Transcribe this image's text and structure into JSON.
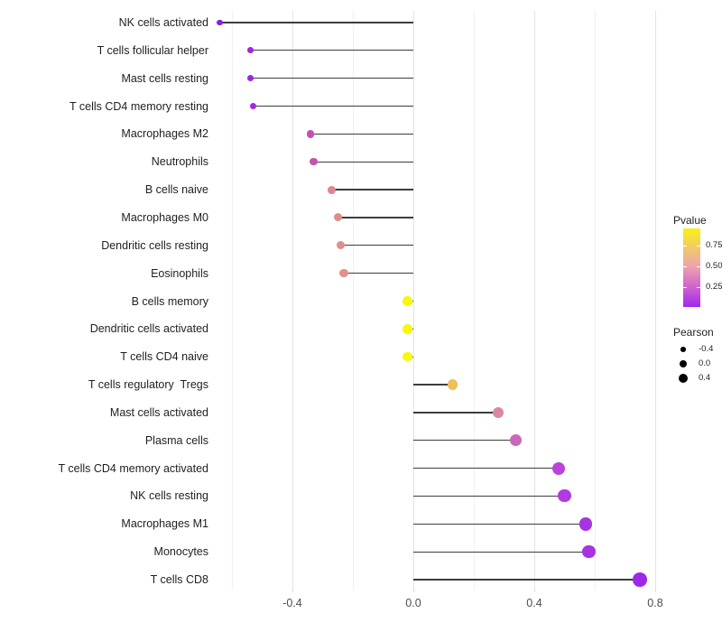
{
  "chart_data": {
    "type": "lollipop",
    "title": "",
    "xlabel": "",
    "ylabel": "",
    "x_axis": {
      "tick_values": [
        -0.4,
        0,
        0.4,
        0.8
      ],
      "tick_labels": [
        "-0.4",
        "0.0",
        "0.4",
        "0.8"
      ],
      "major_gridlines": [
        -0.4,
        0,
        0.4,
        0.8
      ],
      "minor_gridlines": [
        -0.6,
        -0.2,
        0.2,
        0.6
      ],
      "range": [
        -0.65,
        0.87
      ]
    },
    "baseline_value": 0,
    "points": [
      {
        "label": "NK cells activated",
        "pearson": -0.64,
        "color": "#8a20d8"
      },
      {
        "label": "T cells follicular helper",
        "pearson": -0.54,
        "color": "#9b27e0"
      },
      {
        "label": "Mast cells resting",
        "pearson": -0.54,
        "color": "#9b27e0"
      },
      {
        "label": "T cells CD4 memory resting",
        "pearson": -0.53,
        "color": "#a129e3"
      },
      {
        "label": "Macrophages M2",
        "pearson": -0.34,
        "color": "#c350b2"
      },
      {
        "label": "Neutrophils",
        "pearson": -0.33,
        "color": "#c553ae"
      },
      {
        "label": "B cells naive",
        "pearson": -0.27,
        "color": "#de8792"
      },
      {
        "label": "Macrophages M0",
        "pearson": -0.25,
        "color": "#e18c8b"
      },
      {
        "label": "Dendritic cells resting",
        "pearson": -0.24,
        "color": "#e18d8d"
      },
      {
        "label": "Eosinophils",
        "pearson": -0.23,
        "color": "#e49089"
      },
      {
        "label": "B cells memory",
        "pearson": -0.02,
        "color": "#f7f80b"
      },
      {
        "label": "Dendritic cells activated",
        "pearson": -0.02,
        "color": "#f7f80b"
      },
      {
        "label": "T cells CD4 naive",
        "pearson": -0.02,
        "color": "#f7f80b"
      },
      {
        "label": "T cells regulatory  Tregs",
        "pearson": 0.13,
        "color": "#eebf5a"
      },
      {
        "label": "Mast cells activated",
        "pearson": 0.28,
        "color": "#da89a1"
      },
      {
        "label": "Plasma cells",
        "pearson": 0.34,
        "color": "#ca68b8"
      },
      {
        "label": "T cells CD4 memory activated",
        "pearson": 0.48,
        "color": "#ba42da"
      },
      {
        "label": "NK cells resting",
        "pearson": 0.5,
        "color": "#b13ae0"
      },
      {
        "label": "Macrophages M1",
        "pearson": 0.57,
        "color": "#a833e3"
      },
      {
        "label": "Monocytes",
        "pearson": 0.58,
        "color": "#a833e3"
      },
      {
        "label": "T cells CD8",
        "pearson": 0.75,
        "color": "#9d28e6"
      }
    ],
    "legend_pvalue": {
      "title": "Pvalue",
      "tick_labels": [
        "0.75",
        "0.50",
        "0.25"
      ],
      "gradient": [
        {
          "pos": 0,
          "color": "#f9f116"
        },
        {
          "pos": 0.22,
          "color": "#f3ce5e"
        },
        {
          "pos": 0.48,
          "color": "#eda4ad"
        },
        {
          "pos": 0.75,
          "color": "#cf62cf"
        },
        {
          "pos": 1,
          "color": "#a226ee"
        }
      ]
    },
    "legend_pearson": {
      "title": "Pearson",
      "items": [
        {
          "label": "-0.4",
          "value": -0.4
        },
        {
          "label": "0.0",
          "value": 0
        },
        {
          "label": "0.4",
          "value": 0.4
        }
      ]
    }
  }
}
